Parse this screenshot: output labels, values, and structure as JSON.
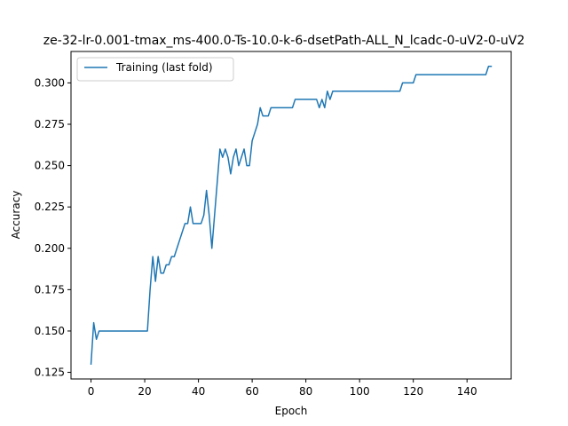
{
  "chart_data": {
    "type": "line",
    "title": "ze-32-lr-0.001-tmax_ms-400.0-Ts-10.0-k-6-dsetPath-ALL_N_lcadc-0-uV2-0-uV2",
    "xlabel": "Epoch",
    "ylabel": "Accuracy",
    "xlim": [
      -7.45,
      156.45
    ],
    "ylim": [
      0.121,
      0.319
    ],
    "xticks": [
      0,
      20,
      40,
      60,
      80,
      100,
      120,
      140
    ],
    "yticks": [
      0.125,
      0.15,
      0.175,
      0.2,
      0.225,
      0.25,
      0.275,
      0.3
    ],
    "ytick_labels": [
      "0.125",
      "0.150",
      "0.175",
      "0.200",
      "0.225",
      "0.250",
      "0.275",
      "0.300"
    ],
    "grid": false,
    "legend_position": "upper-left",
    "series": [
      {
        "name": "Training (last fold)",
        "color": "#1f77b4",
        "x": [
          0,
          1,
          2,
          3,
          4,
          5,
          6,
          7,
          8,
          9,
          10,
          11,
          12,
          13,
          14,
          15,
          16,
          17,
          18,
          19,
          20,
          21,
          22,
          23,
          24,
          25,
          26,
          27,
          28,
          29,
          30,
          31,
          32,
          33,
          34,
          35,
          36,
          37,
          38,
          39,
          40,
          41,
          42,
          43,
          44,
          45,
          46,
          47,
          48,
          49,
          50,
          51,
          52,
          53,
          54,
          55,
          56,
          57,
          58,
          59,
          60,
          61,
          62,
          63,
          64,
          65,
          66,
          67,
          68,
          69,
          70,
          71,
          72,
          73,
          74,
          75,
          76,
          77,
          78,
          79,
          80,
          81,
          82,
          83,
          84,
          85,
          86,
          87,
          88,
          89,
          90,
          91,
          92,
          93,
          94,
          95,
          96,
          97,
          98,
          99,
          100,
          101,
          102,
          103,
          104,
          105,
          106,
          107,
          108,
          109,
          110,
          111,
          112,
          113,
          114,
          115,
          116,
          117,
          118,
          119,
          120,
          121,
          122,
          123,
          124,
          125,
          126,
          127,
          128,
          129,
          130,
          131,
          132,
          133,
          134,
          135,
          136,
          137,
          138,
          139,
          140,
          141,
          142,
          143,
          144,
          145,
          146,
          147,
          148,
          149
        ],
        "values": [
          0.13,
          0.155,
          0.145,
          0.15,
          0.15,
          0.15,
          0.15,
          0.15,
          0.15,
          0.15,
          0.15,
          0.15,
          0.15,
          0.15,
          0.15,
          0.15,
          0.15,
          0.15,
          0.15,
          0.15,
          0.15,
          0.15,
          0.175,
          0.195,
          0.18,
          0.195,
          0.185,
          0.185,
          0.19,
          0.19,
          0.195,
          0.195,
          0.2,
          0.205,
          0.21,
          0.215,
          0.215,
          0.225,
          0.215,
          0.215,
          0.215,
          0.215,
          0.22,
          0.235,
          0.22,
          0.2,
          0.22,
          0.24,
          0.26,
          0.255,
          0.26,
          0.255,
          0.245,
          0.255,
          0.26,
          0.25,
          0.255,
          0.26,
          0.25,
          0.25,
          0.265,
          0.27,
          0.275,
          0.285,
          0.28,
          0.28,
          0.28,
          0.285,
          0.285,
          0.285,
          0.285,
          0.285,
          0.285,
          0.285,
          0.285,
          0.285,
          0.29,
          0.29,
          0.29,
          0.29,
          0.29,
          0.29,
          0.29,
          0.29,
          0.29,
          0.285,
          0.29,
          0.285,
          0.295,
          0.29,
          0.295,
          0.295,
          0.295,
          0.295,
          0.295,
          0.295,
          0.295,
          0.295,
          0.295,
          0.295,
          0.295,
          0.295,
          0.295,
          0.295,
          0.295,
          0.295,
          0.295,
          0.295,
          0.295,
          0.295,
          0.295,
          0.295,
          0.295,
          0.295,
          0.295,
          0.295,
          0.3,
          0.3,
          0.3,
          0.3,
          0.3,
          0.305,
          0.305,
          0.305,
          0.305,
          0.305,
          0.305,
          0.305,
          0.305,
          0.305,
          0.305,
          0.305,
          0.305,
          0.305,
          0.305,
          0.305,
          0.305,
          0.305,
          0.305,
          0.305,
          0.305,
          0.305,
          0.305,
          0.305,
          0.305,
          0.305,
          0.305,
          0.305,
          0.31,
          0.31
        ]
      }
    ]
  }
}
